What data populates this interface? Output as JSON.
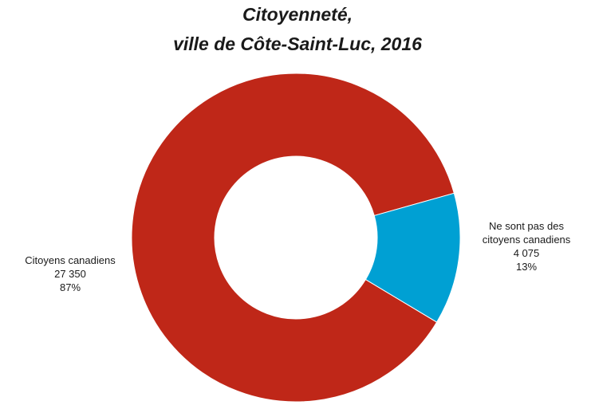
{
  "chart_data": {
    "type": "donut",
    "title": [
      "Citoyenneté,",
      "ville de Côte-Saint-Luc, 2016"
    ],
    "categories": [
      "Citoyens canadiens",
      "Ne sont pas des citoyens canadiens"
    ],
    "values": [
      27350,
      4075
    ],
    "value_labels": [
      "27 350",
      "4 075"
    ],
    "percents": [
      87,
      13
    ],
    "percent_labels": [
      "87%",
      "13%"
    ],
    "colors": [
      "#bf2718",
      "#00a0d3"
    ]
  }
}
